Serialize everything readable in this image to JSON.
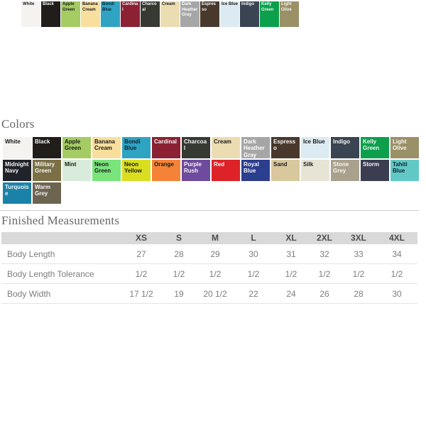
{
  "page": {
    "background_color": "#ffffff"
  },
  "top_strip": {
    "visible_swatch_count": 14
  },
  "colors_section": {
    "heading": "Colors",
    "swatches": [
      {
        "name": "White",
        "hex": "#f4f3f0",
        "text": "#1a1a1a"
      },
      {
        "name": "Black",
        "hex": "#201d1a",
        "text": "#f5f5f5"
      },
      {
        "name": "Apple Green",
        "hex": "#a4cc63",
        "text": "#1a1a1a"
      },
      {
        "name": "Banana Cream",
        "hex": "#f8df9d",
        "text": "#1a1a1a"
      },
      {
        "name": "Bondi Blue",
        "hex": "#2ea4c2",
        "text": "#10222e"
      },
      {
        "name": "Cardinal",
        "hex": "#8b2133",
        "text": "#f5f5f5"
      },
      {
        "name": "Charcoal",
        "hex": "#363a33",
        "text": "#f5f5f5"
      },
      {
        "name": "Cream",
        "hex": "#ebdcb1",
        "text": "#1a1a1a"
      },
      {
        "name": "Dark Heather Gray",
        "hex": "#a6a6a6",
        "text": "#ffffff"
      },
      {
        "name": "Espresso",
        "hex": "#49392d",
        "text": "#f5f5f5"
      },
      {
        "name": "Ice Blue",
        "hex": "#dcebf1",
        "text": "#1a1a1a"
      },
      {
        "name": "Indigo",
        "hex": "#3b4453",
        "text": "#f5f5f5"
      },
      {
        "name": "Kelly Green",
        "hex": "#0ca04d",
        "text": "#f5f5f5"
      },
      {
        "name": "Light Olive",
        "hex": "#9b9166",
        "text": "#f5f5f5"
      },
      {
        "name": "Midnight Navy",
        "hex": "#20232a",
        "text": "#f5f5f5"
      },
      {
        "name": "Military Green",
        "hex": "#7b6f45",
        "text": "#f5f5f5"
      },
      {
        "name": "Mint",
        "hex": "#d9ecdb",
        "text": "#1a1a1a"
      },
      {
        "name": "Neon Green",
        "hex": "#79e47a",
        "text": "#1a1a1a"
      },
      {
        "name": "Neon Yellow",
        "hex": "#dade20",
        "text": "#1a1a1a"
      },
      {
        "name": "Orange",
        "hex": "#f58337",
        "text": "#1a1a1a"
      },
      {
        "name": "Purple Rush",
        "hex": "#6e4b9d",
        "text": "#f5f5f5"
      },
      {
        "name": "Red",
        "hex": "#dd2328",
        "text": "#f5f5f5"
      },
      {
        "name": "Royal Blue",
        "hex": "#2c3e8e",
        "text": "#f5f5f5"
      },
      {
        "name": "Sand",
        "hex": "#d9c89d",
        "text": "#1a1a1a"
      },
      {
        "name": "Silk",
        "hex": "#e7e3d5",
        "text": "#1a1a1a"
      },
      {
        "name": "Stone Grey",
        "hex": "#a9a18c",
        "text": "#f5f5f5"
      },
      {
        "name": "Storm",
        "hex": "#3b3d51",
        "text": "#f5f5f5"
      },
      {
        "name": "Tahiti Blue",
        "hex": "#61c9c5",
        "text": "#10222e"
      },
      {
        "name": "Turquoise",
        "hex": "#1a82a9",
        "text": "#f5f5f5"
      },
      {
        "name": "Warm Grey",
        "hex": "#6e6452",
        "text": "#f5f5f5"
      }
    ]
  },
  "measurements_section": {
    "heading": "Finished Measurements",
    "size_columns": [
      "XS",
      "S",
      "M",
      "L",
      "XL",
      "2XL",
      "3XL",
      "4XL"
    ],
    "rows": [
      {
        "label": "Body Length",
        "values": [
          "27",
          "28",
          "29",
          "30",
          "31",
          "32",
          "33",
          "34"
        ]
      },
      {
        "label": "Body Length Tolerance",
        "values": [
          "1/2",
          "1/2",
          "1/2",
          "1/2",
          "1/2",
          "1/2",
          "1/2",
          "1/2"
        ]
      },
      {
        "label": "Body Width",
        "values": [
          "17 1/2",
          "19",
          "20 1/2",
          "22",
          "24",
          "26",
          "28",
          "30"
        ]
      }
    ]
  }
}
